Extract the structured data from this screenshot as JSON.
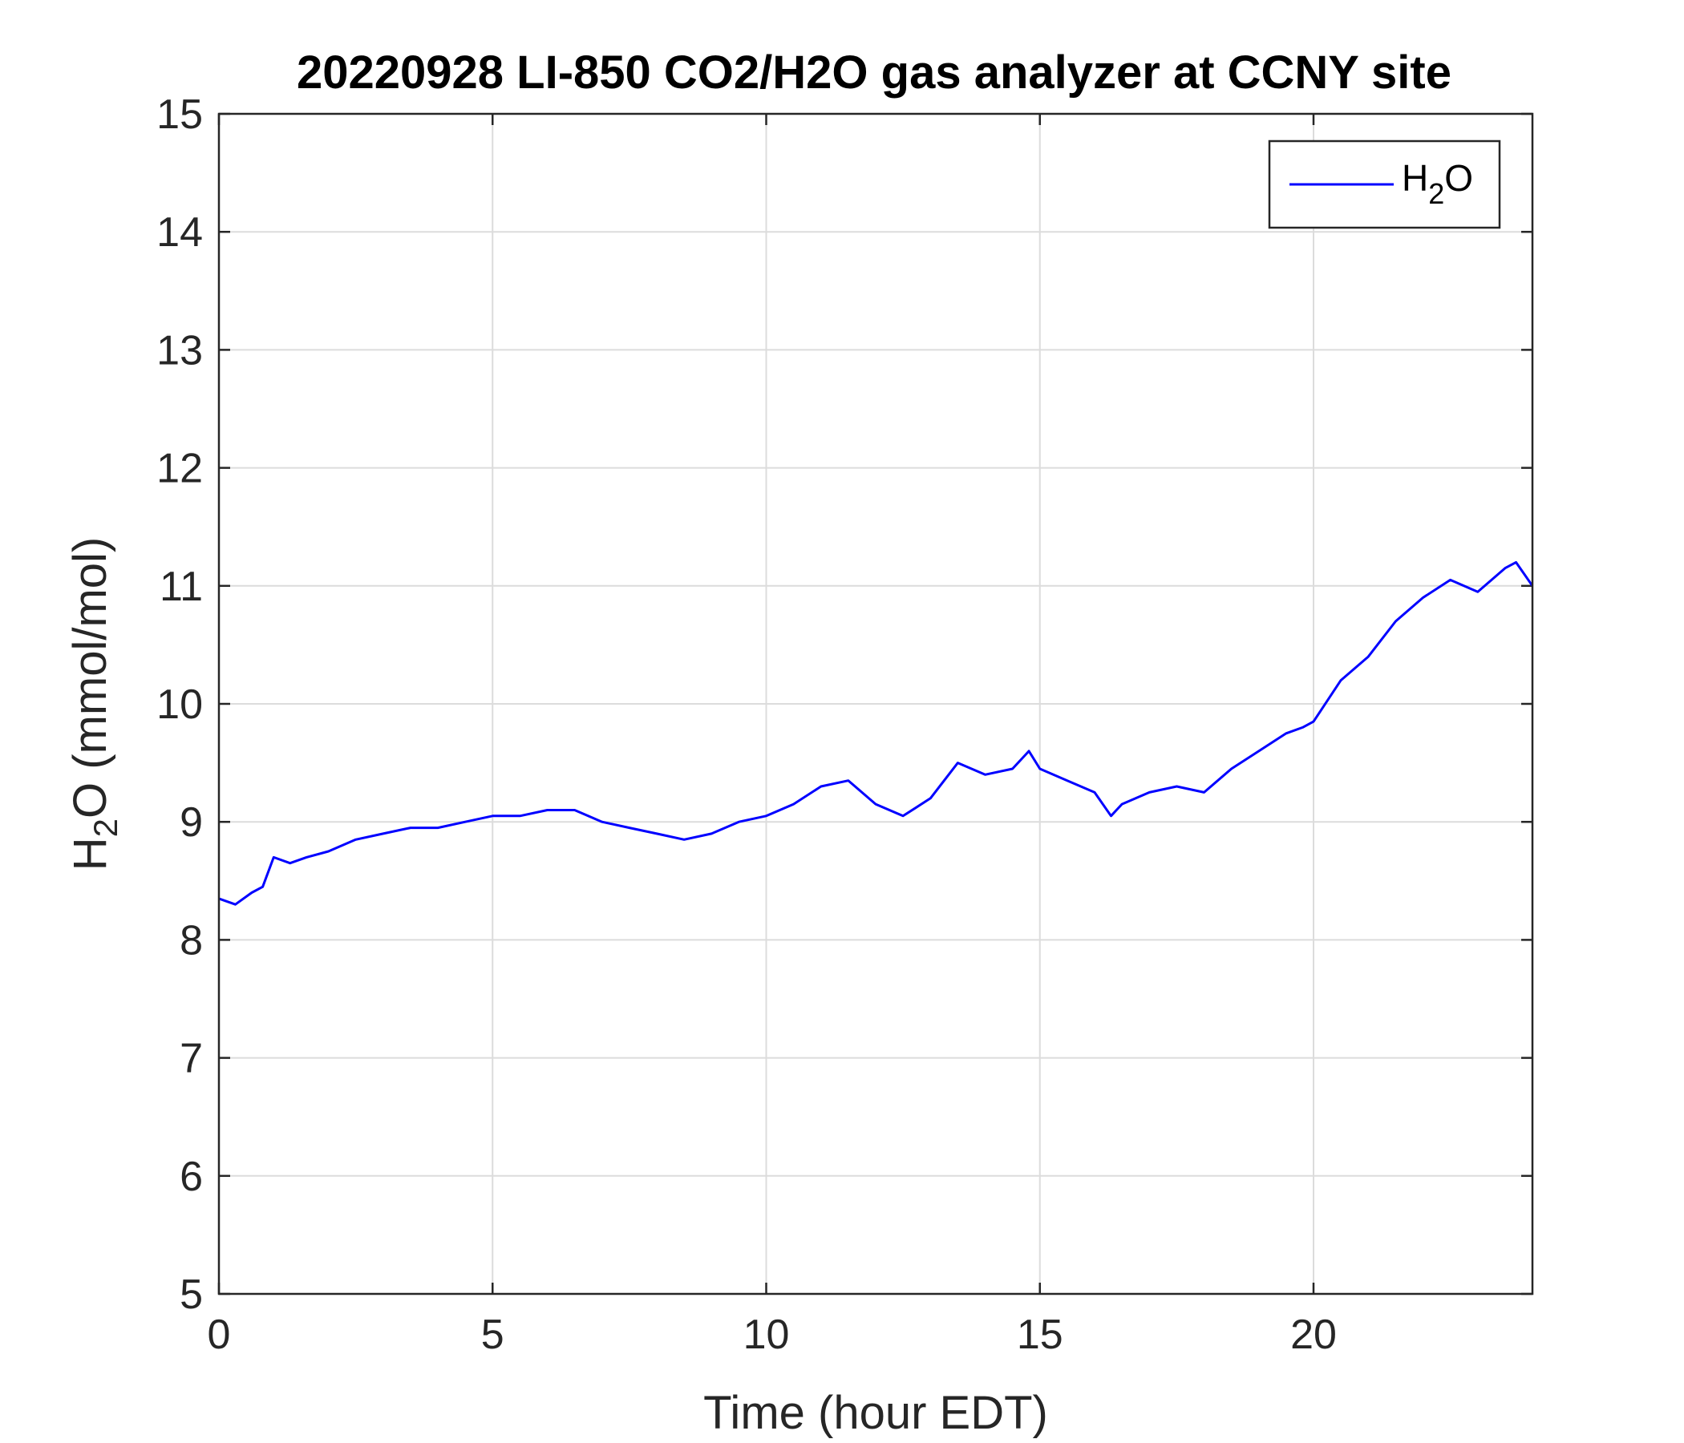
{
  "chart_data": {
    "type": "line",
    "title": "20220928 LI-850 CO2/H2O gas analyzer at CCNY site",
    "xlabel": "Time (hour EDT)",
    "ylabel": {
      "pre": "H",
      "sub": "2",
      "post": "O (mmol/mol)"
    },
    "xlim": [
      0,
      24
    ],
    "ylim": [
      5,
      15
    ],
    "xticks": [
      0,
      5,
      10,
      15,
      20
    ],
    "yticks": [
      5,
      6,
      7,
      8,
      9,
      10,
      11,
      12,
      13,
      14,
      15
    ],
    "grid": true,
    "legend": {
      "position": "top-right",
      "entries": [
        {
          "pre": "H",
          "sub": "2",
          "post": "O"
        }
      ]
    },
    "series": [
      {
        "name": "H2O",
        "color": "#0000ff",
        "x": [
          0,
          0.3,
          0.6,
          0.8,
          1.0,
          1.3,
          1.6,
          2.0,
          2.5,
          3.0,
          3.5,
          4.0,
          4.5,
          5.0,
          5.5,
          6.0,
          6.5,
          7.0,
          7.5,
          8.0,
          8.5,
          9.0,
          9.5,
          10.0,
          10.5,
          11.0,
          11.5,
          12.0,
          12.5,
          13.0,
          13.5,
          14.0,
          14.5,
          14.8,
          15.0,
          15.5,
          16.0,
          16.3,
          16.5,
          17.0,
          17.5,
          18.0,
          18.5,
          19.0,
          19.5,
          19.8,
          20.0,
          20.5,
          21.0,
          21.5,
          22.0,
          22.5,
          23.0,
          23.5,
          23.7,
          24.0
        ],
        "y": [
          8.35,
          8.3,
          8.4,
          8.45,
          8.7,
          8.65,
          8.7,
          8.75,
          8.85,
          8.9,
          8.95,
          8.95,
          9.0,
          9.05,
          9.05,
          9.1,
          9.1,
          9.0,
          8.95,
          8.9,
          8.85,
          8.9,
          9.0,
          9.05,
          9.15,
          9.3,
          9.35,
          9.15,
          9.05,
          9.2,
          9.5,
          9.4,
          9.45,
          9.6,
          9.45,
          9.35,
          9.25,
          9.05,
          9.15,
          9.25,
          9.3,
          9.25,
          9.45,
          9.6,
          9.75,
          9.8,
          9.85,
          10.2,
          10.4,
          10.7,
          10.9,
          11.05,
          10.95,
          11.15,
          11.2,
          11.0
        ]
      }
    ]
  }
}
